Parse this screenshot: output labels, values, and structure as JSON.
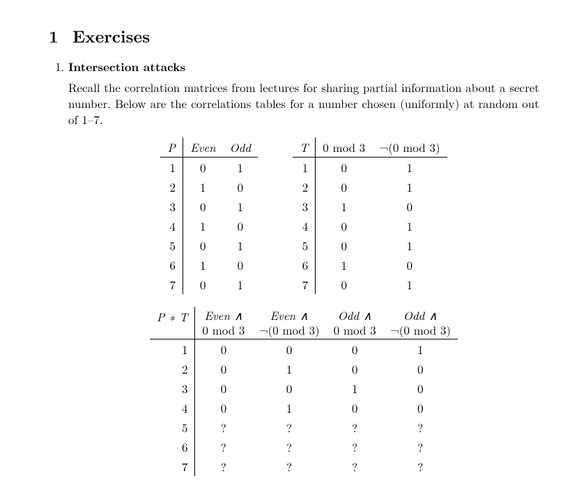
{
  "section": {
    "number": "1",
    "title": "Exercises"
  },
  "exercise": {
    "number": "1.",
    "title": "Intersection attacks",
    "intro": "Recall the correlation matrices from lectures for sharing partial information about a secret number. Below are the correlations tables for a number chosen (uniformly) at random out of 1–7."
  },
  "tableP": {
    "head": {
      "c0": "P",
      "c1": "Even",
      "c2": "Odd"
    },
    "rows": [
      {
        "c0": "1",
        "c1": "0",
        "c2": "1"
      },
      {
        "c0": "2",
        "c1": "1",
        "c2": "0"
      },
      {
        "c0": "3",
        "c1": "0",
        "c2": "1"
      },
      {
        "c0": "4",
        "c1": "1",
        "c2": "0"
      },
      {
        "c0": "5",
        "c1": "0",
        "c2": "1"
      },
      {
        "c0": "6",
        "c1": "1",
        "c2": "0"
      },
      {
        "c0": "7",
        "c1": "0",
        "c2": "1"
      }
    ]
  },
  "tableT": {
    "head": {
      "c0": "T",
      "c1": "0  mod 3",
      "c2": "¬(0  mod 3)"
    },
    "rows": [
      {
        "c0": "1",
        "c1": "0",
        "c2": "1"
      },
      {
        "c0": "2",
        "c1": "0",
        "c2": "1"
      },
      {
        "c0": "3",
        "c1": "1",
        "c2": "0"
      },
      {
        "c0": "4",
        "c1": "0",
        "c2": "1"
      },
      {
        "c0": "5",
        "c1": "0",
        "c2": "1"
      },
      {
        "c0": "6",
        "c1": "1",
        "c2": "0"
      },
      {
        "c0": "7",
        "c1": "0",
        "c2": "1"
      }
    ]
  },
  "tablePT": {
    "head": {
      "c0": "P ∗ T",
      "c1a": "Even ∧",
      "c1b": "0  mod 3",
      "c2a": "Even ∧",
      "c2b": "¬(0  mod 3)",
      "c3a": "Odd ∧",
      "c3b": "0  mod 3",
      "c4a": "Odd ∧",
      "c4b": "¬(0  mod 3)"
    },
    "rows": [
      {
        "c0": "1",
        "c1": "0",
        "c2": "0",
        "c3": "0",
        "c4": "1"
      },
      {
        "c0": "2",
        "c1": "0",
        "c2": "1",
        "c3": "0",
        "c4": "0"
      },
      {
        "c0": "3",
        "c1": "0",
        "c2": "0",
        "c3": "1",
        "c4": "0"
      },
      {
        "c0": "4",
        "c1": "0",
        "c2": "1",
        "c3": "0",
        "c4": "0"
      },
      {
        "c0": "5",
        "c1": "?",
        "c2": "?",
        "c3": "?",
        "c4": "?"
      },
      {
        "c0": "6",
        "c1": "?",
        "c2": "?",
        "c3": "?",
        "c4": "?"
      },
      {
        "c0": "7",
        "c1": "?",
        "c2": "?",
        "c3": "?",
        "c4": "?"
      }
    ]
  }
}
